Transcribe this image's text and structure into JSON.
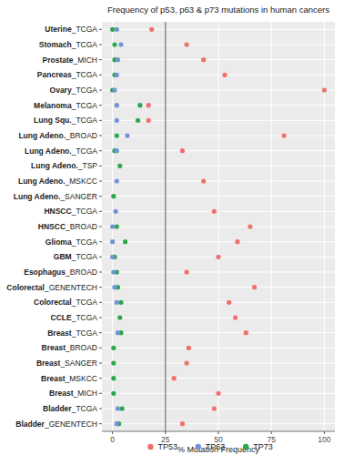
{
  "chart_data": {
    "type": "scatter",
    "orientation": "horizontal",
    "title": "Frequency of p53, p63 & p73 mutations in human cancers",
    "x_label": "% Mutation Frequency",
    "categories": [
      "Uterine_TCGA",
      "Stomach_TCGA",
      "Prostate_MICH",
      "Pancreas_TCGA",
      "Ovary_TCGA",
      "Melanoma_TCGA",
      "Lung Squ._TCGA",
      "Lung Adeno._BROAD",
      "Lung Adeno._TCGA",
      "Lung Adeno._TSP",
      "Lung Adeno._MSKCC",
      "Lung Adeno._SANGER",
      "HNSCC_TCGA",
      "HNSCC_BROAD",
      "Glioma_TCGA",
      "GBM_TCGA",
      "Esophagus_BROAD",
      "Colorectal_GENENTECH",
      "Colorectal_TCGA",
      "CCLE_TCGA",
      "Breast_TCGA",
      "Breast_BROAD",
      "Breast_SANGER",
      "Breast_MSKCC",
      "Breast_MICH",
      "Bladder_TCGA",
      "Bladder_GENENTECH"
    ],
    "series": [
      {
        "name": "TP53",
        "color": "#f0706a",
        "marker": "circle",
        "values": [
          18.5,
          35,
          43,
          53,
          100,
          17,
          17,
          81,
          33,
          null,
          43,
          null,
          48,
          65,
          59,
          50,
          35,
          67,
          55,
          58,
          63,
          36,
          35,
          29,
          50,
          48,
          33
        ]
      },
      {
        "name": "TP63",
        "color": "#7393d9",
        "marker": "circle",
        "values": [
          2,
          4,
          2.5,
          2,
          1,
          2,
          2,
          7,
          2,
          null,
          2,
          null,
          1.5,
          0,
          0,
          0,
          0.5,
          1,
          2,
          null,
          2.5,
          null,
          null,
          null,
          null,
          2.5,
          2
        ]
      },
      {
        "name": "TP73",
        "color": "#2aa84a",
        "marker": "circle",
        "values": [
          0,
          1,
          1,
          1,
          0,
          13,
          12,
          2,
          1,
          3.5,
          null,
          0.5,
          null,
          2,
          6,
          1,
          2,
          2.5,
          4,
          3.5,
          4,
          0.5,
          0.5,
          0.5,
          0.5,
          4.5,
          3
        ]
      }
    ],
    "reference_x": 25,
    "xlim": [
      -5,
      105
    ],
    "xticks": [
      0,
      25,
      50,
      75,
      100
    ],
    "grid": true,
    "legend": "bottom"
  }
}
